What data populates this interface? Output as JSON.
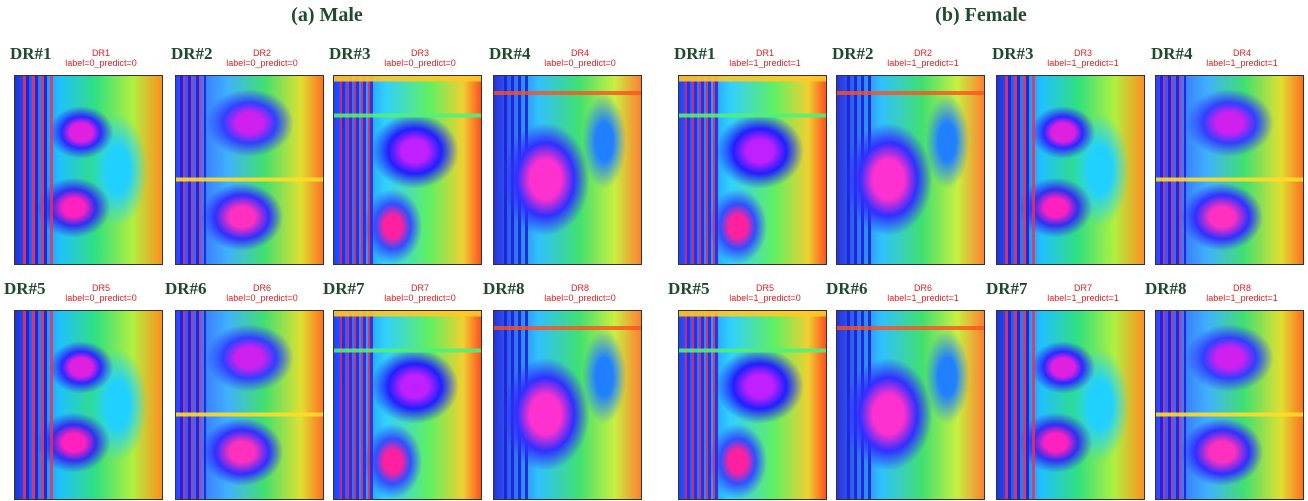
{
  "panels": [
    {
      "title": "(a) Male",
      "items": [
        {
          "label": "DR#1",
          "name": "DR1",
          "caption": "label=0_predict=0"
        },
        {
          "label": "DR#2",
          "name": "DR2",
          "caption": "label=0_predict=0"
        },
        {
          "label": "DR#3",
          "name": "DR3",
          "caption": "label=0_predict=0"
        },
        {
          "label": "DR#4",
          "name": "DR4",
          "caption": "label=0_predict=0"
        },
        {
          "label": "DR#5",
          "name": "DR5",
          "caption": "label=0_predict=0"
        },
        {
          "label": "DR#6",
          "name": "DR6",
          "caption": "label=0_predict=0"
        },
        {
          "label": "DR#7",
          "name": "DR7",
          "caption": "label=0_predict=0"
        },
        {
          "label": "DR#8",
          "name": "DR8",
          "caption": "label=0_predict=0"
        }
      ]
    },
    {
      "title": "(b) Female",
      "items": [
        {
          "label": "DR#1",
          "name": "DR1",
          "caption": "label=1_predict=1"
        },
        {
          "label": "DR#2",
          "name": "DR2",
          "caption": "label=1_predict=1"
        },
        {
          "label": "DR#3",
          "name": "DR3",
          "caption": "label=1_predict=1"
        },
        {
          "label": "DR#4",
          "name": "DR4",
          "caption": "label=1_predict=1"
        },
        {
          "label": "DR#5",
          "name": "DR5",
          "caption": "label=1_predict=0"
        },
        {
          "label": "DR#6",
          "name": "DR6",
          "caption": "label=1_predict=1"
        },
        {
          "label": "DR#7",
          "name": "DR7",
          "caption": "label=1_predict=1"
        },
        {
          "label": "DR#8",
          "name": "DR8",
          "caption": "label=1_predict=1"
        }
      ]
    }
  ]
}
